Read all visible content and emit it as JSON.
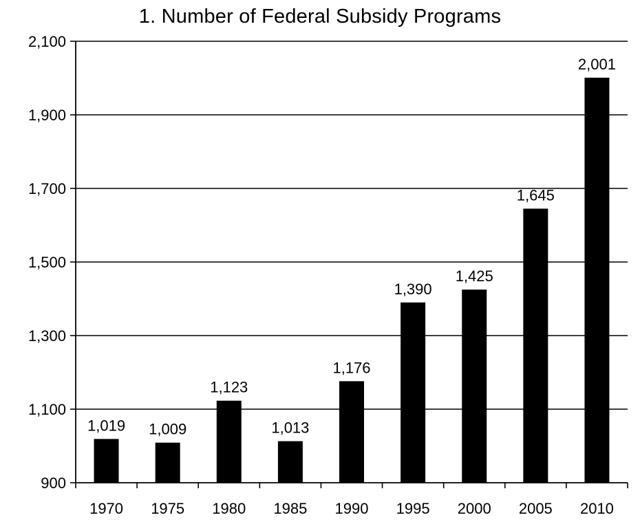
{
  "chart_data": {
    "type": "bar",
    "title": "1. Number of Federal Subsidy Programs",
    "xlabel": "",
    "ylabel": "",
    "categories": [
      "1970",
      "1975",
      "1980",
      "1985",
      "1990",
      "1995",
      "2000",
      "2005",
      "2010"
    ],
    "values": [
      1019,
      1009,
      1123,
      1013,
      1176,
      1390,
      1425,
      1645,
      2001
    ],
    "data_labels": [
      "1,019",
      "1,009",
      "1,123",
      "1,013",
      "1,176",
      "1,390",
      "1,425",
      "1,645",
      "2,001"
    ],
    "ylim": [
      900,
      2100
    ],
    "yticks": [
      900,
      1100,
      1300,
      1500,
      1700,
      1900,
      2100
    ],
    "ytick_labels": [
      "900",
      "1,100",
      "1,300",
      "1,500",
      "1,700",
      "1,900",
      "2,100"
    ],
    "grid": true,
    "legend": "none",
    "bar_color": "#000000"
  }
}
